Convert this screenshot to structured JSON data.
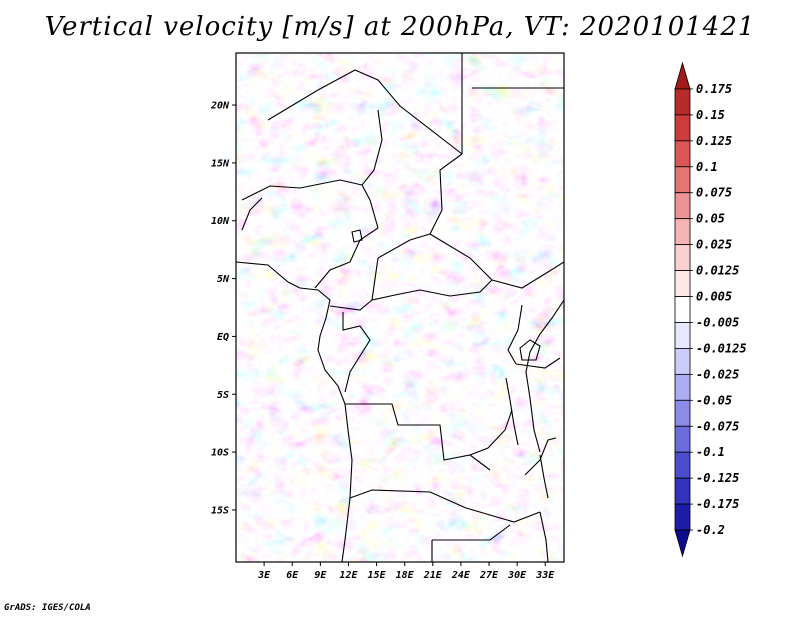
{
  "title": "Vertical velocity [m/s] at 200hPa, VT: 2020101421",
  "credit": "GrADS: IGES/COLA",
  "map": {
    "lat_labels": [
      "20N",
      "15N",
      "10N",
      "5N",
      "EQ",
      "5S",
      "10S",
      "15S"
    ],
    "lat_values": [
      20,
      15,
      10,
      5,
      0,
      -5,
      -10,
      -15
    ],
    "lon_labels": [
      "3E",
      "6E",
      "9E",
      "12E",
      "15E",
      "18E",
      "21E",
      "24E",
      "27E",
      "30E",
      "33E"
    ],
    "lon_values": [
      3,
      6,
      9,
      12,
      15,
      18,
      21,
      24,
      27,
      30,
      33
    ],
    "lon_range": [
      0,
      35
    ],
    "lat_range": [
      -19.5,
      24.5
    ]
  },
  "colorbar": {
    "labels": [
      "0.175",
      "0.15",
      "0.125",
      "0.1",
      "0.075",
      "0.05",
      "0.025",
      "0.0125",
      "0.005",
      "-0.005",
      "-0.0125",
      "-0.025",
      "-0.05",
      "-0.075",
      "-0.1",
      "-0.125",
      "-0.175",
      "-0.2"
    ],
    "colors": [
      "#a11b1b",
      "#b92a2a",
      "#cc3c3c",
      "#dc5656",
      "#e57474",
      "#ee9393",
      "#f5b3b3",
      "#fad0d0",
      "#fde8e8",
      "#ffffff",
      "#e8e8fc",
      "#ccccf8",
      "#acacf2",
      "#8c8ce8",
      "#6c6cdc",
      "#4c4cce",
      "#3232bc",
      "#1c1ca6",
      "#0c0c8c"
    ]
  }
}
